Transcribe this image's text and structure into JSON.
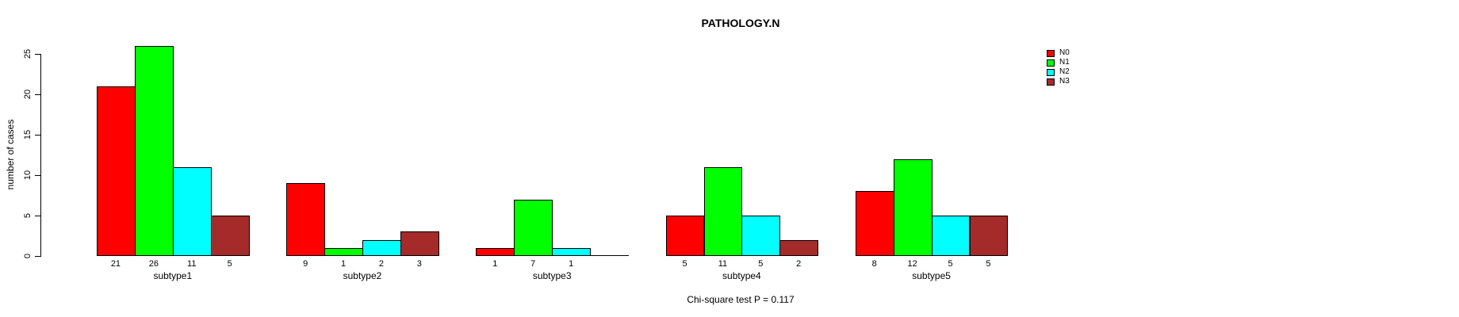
{
  "chart_data": {
    "type": "bar",
    "title": "PATHOLOGY.N",
    "ylabel": "number of cases",
    "xlabel": "",
    "categories": [
      "subtype1",
      "subtype2",
      "subtype3",
      "subtype4",
      "subtype5"
    ],
    "series": [
      {
        "name": "N0",
        "color": "#FF0000",
        "values": [
          21,
          9,
          1,
          5,
          8
        ]
      },
      {
        "name": "N1",
        "color": "#00FF00",
        "values": [
          26,
          1,
          7,
          11,
          12
        ]
      },
      {
        "name": "N2",
        "color": "#00FFFF",
        "values": [
          11,
          2,
          1,
          5,
          5
        ]
      },
      {
        "name": "N3",
        "color": "#A52A2A",
        "values": [
          5,
          3,
          0,
          2,
          5
        ]
      }
    ],
    "yticks": [
      0,
      5,
      10,
      15,
      20,
      25
    ],
    "ylim": [
      0,
      26
    ],
    "grid": false,
    "legend_position": "top-right",
    "bar_value_labels_shown": true,
    "zero_value_labels_hidden": true,
    "annotation": "Chi-square test P = 0.117"
  }
}
